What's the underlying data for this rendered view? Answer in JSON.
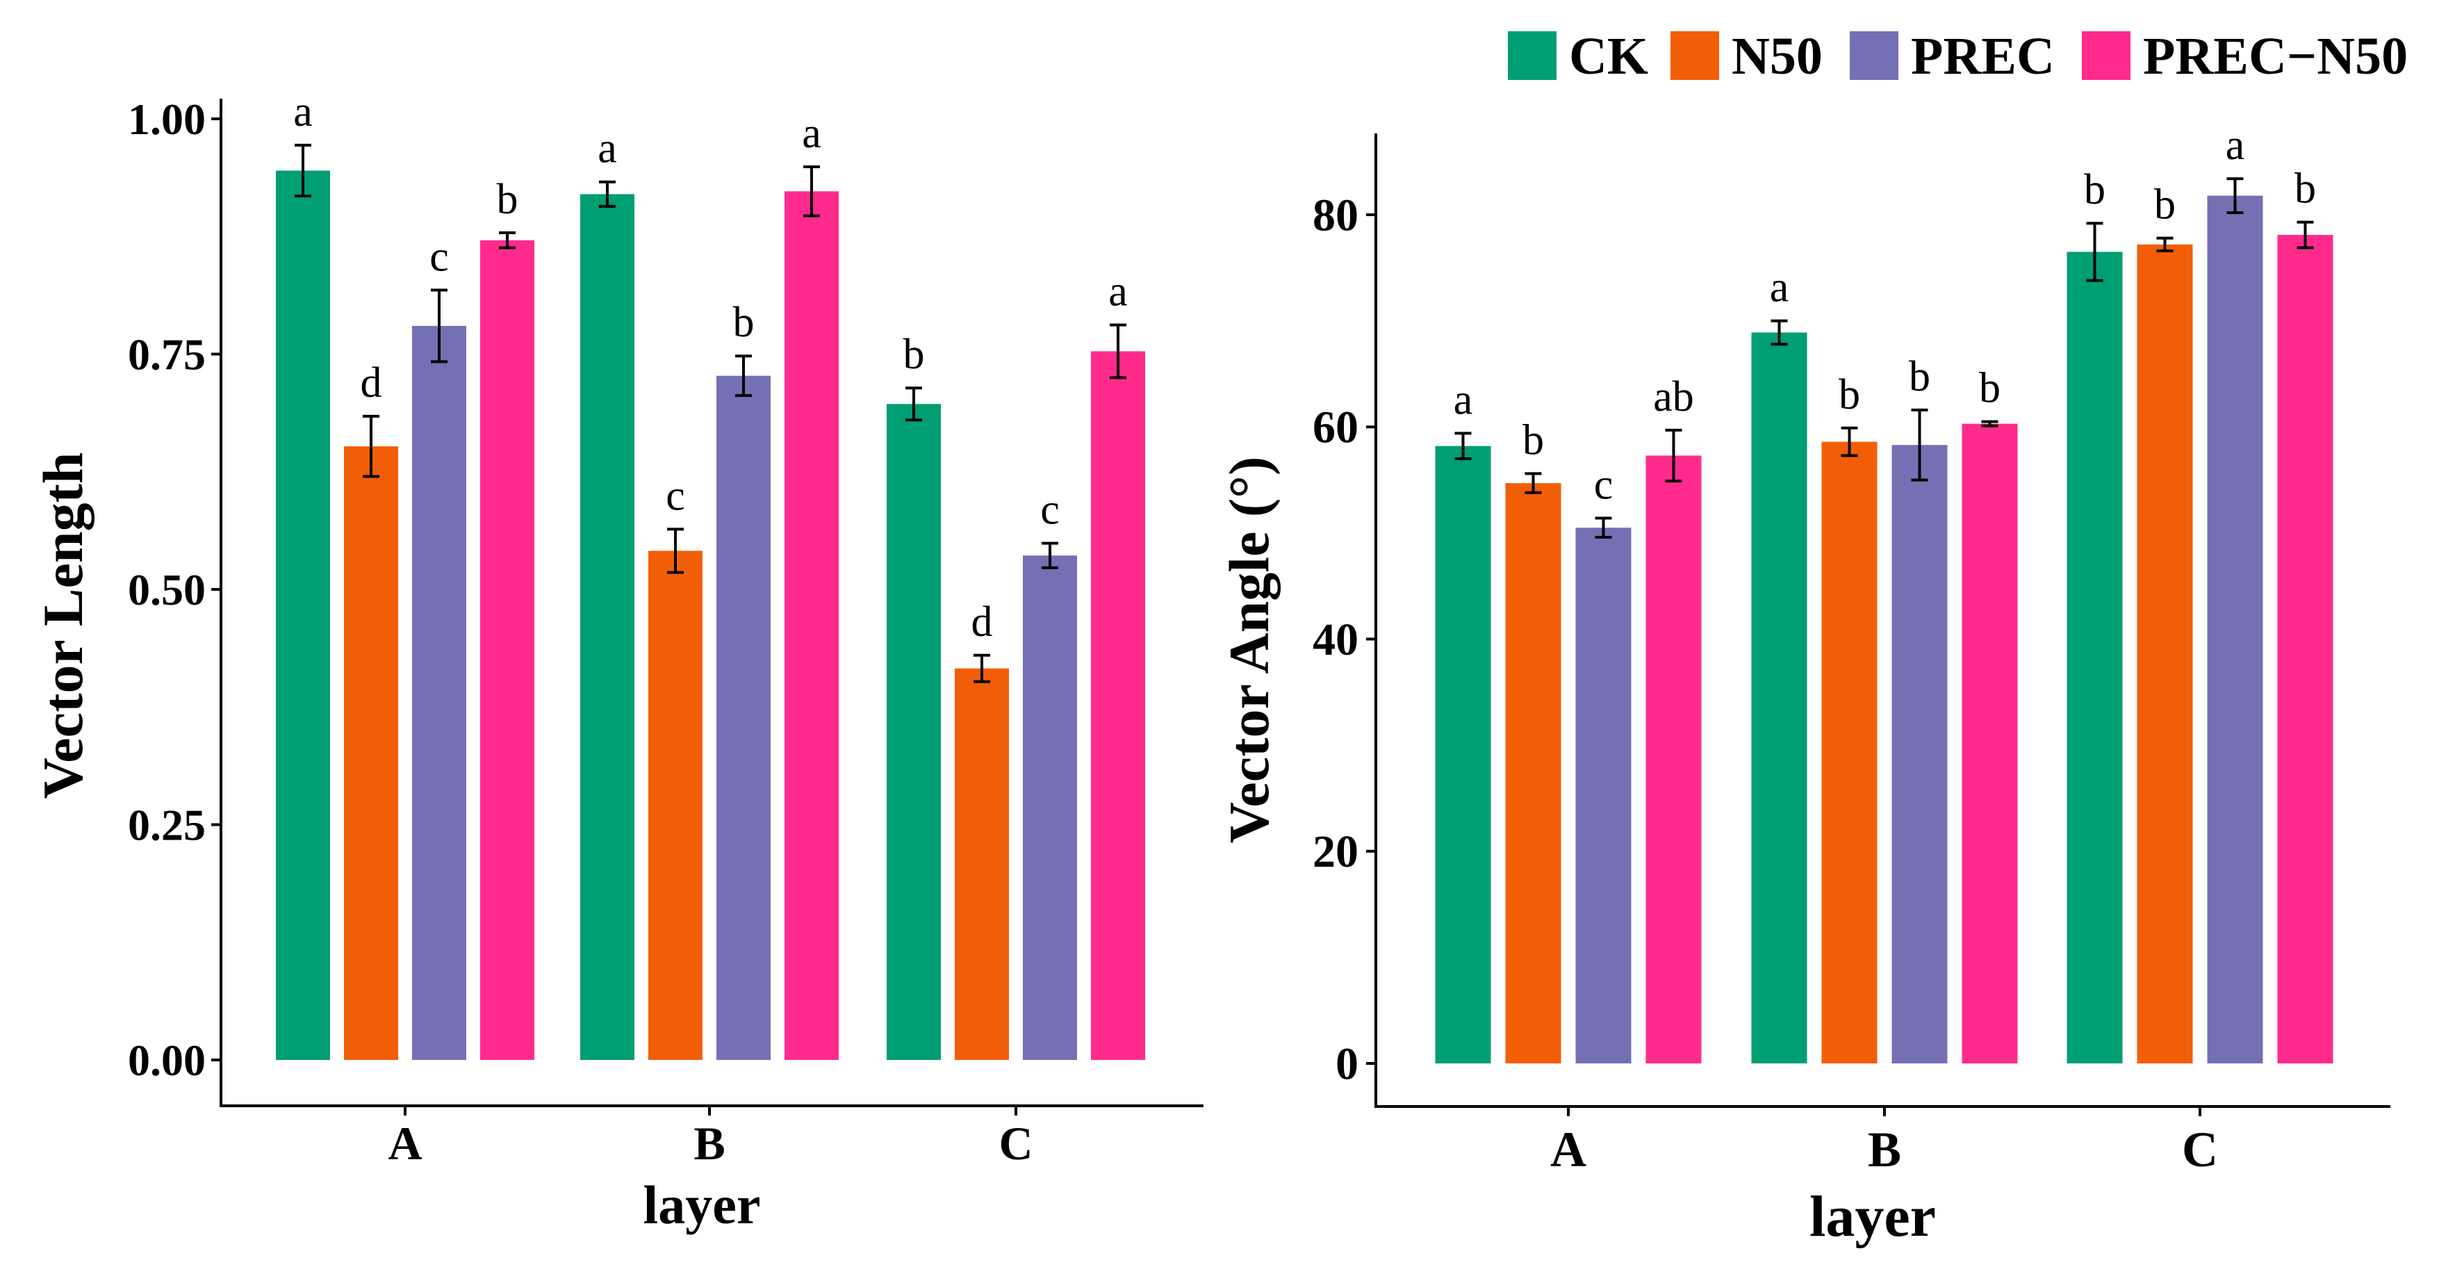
{
  "legend": {
    "items": [
      {
        "label": "CK",
        "color": "#009E73"
      },
      {
        "label": "N50",
        "color": "#F25E07"
      },
      {
        "label": "PREC",
        "color": "#7570B3"
      },
      {
        "label": "PREC−N50",
        "color": "#FF2B8C"
      }
    ]
  },
  "chart_data": [
    {
      "type": "bar",
      "xlabel": "layer",
      "ylabel": "Vector Length",
      "categories": [
        "A",
        "B",
        "C"
      ],
      "ylim": [
        0,
        1.0
      ],
      "yticks": [
        "0.00",
        "0.25",
        "0.50",
        "0.75",
        "1.00"
      ],
      "ytick_values": [
        0,
        0.25,
        0.5,
        0.75,
        1.0
      ],
      "legend_position": "top-right",
      "grid": false,
      "series": [
        {
          "name": "CK",
          "values": [
            0.945,
            0.92,
            0.697
          ],
          "errors": [
            0.027,
            0.013,
            0.017
          ],
          "letters": [
            "a",
            "a",
            "b"
          ]
        },
        {
          "name": "N50",
          "values": [
            0.652,
            0.541,
            0.416
          ],
          "errors": [
            0.032,
            0.023,
            0.014
          ],
          "letters": [
            "d",
            "c",
            "d"
          ]
        },
        {
          "name": "PREC",
          "values": [
            0.78,
            0.727,
            0.536
          ],
          "errors": [
            0.038,
            0.021,
            0.013
          ],
          "letters": [
            "c",
            "b",
            "c"
          ]
        },
        {
          "name": "PREC−N50",
          "values": [
            0.871,
            0.923,
            0.753
          ],
          "errors": [
            0.008,
            0.026,
            0.028
          ],
          "letters": [
            "b",
            "a",
            "a"
          ]
        }
      ]
    },
    {
      "type": "bar",
      "xlabel": "layer",
      "ylabel": "Vector Angle  (°)",
      "categories": [
        "A",
        "B",
        "C"
      ],
      "ylim": [
        0,
        85
      ],
      "yticks": [
        "0",
        "20",
        "40",
        "60",
        "80"
      ],
      "ytick_values": [
        0,
        20,
        40,
        60,
        80
      ],
      "legend_position": "top-right",
      "grid": false,
      "series": [
        {
          "name": "CK",
          "values": [
            58.2,
            68.9,
            76.5
          ],
          "errors": [
            1.2,
            1.1,
            2.7
          ],
          "letters": [
            "a",
            "a",
            "b"
          ]
        },
        {
          "name": "N50",
          "values": [
            54.7,
            58.6,
            77.2
          ],
          "errors": [
            0.9,
            1.3,
            0.6
          ],
          "letters": [
            "b",
            "b",
            "b"
          ]
        },
        {
          "name": "PREC",
          "values": [
            50.5,
            58.3,
            81.8
          ],
          "errors": [
            0.9,
            3.3,
            1.6
          ],
          "letters": [
            "c",
            "b",
            "a"
          ]
        },
        {
          "name": "PREC−N50",
          "values": [
            57.3,
            60.3,
            78.1
          ],
          "errors": [
            2.4,
            0.2,
            1.2
          ],
          "letters": [
            "ab",
            "b",
            "b"
          ]
        }
      ]
    }
  ]
}
